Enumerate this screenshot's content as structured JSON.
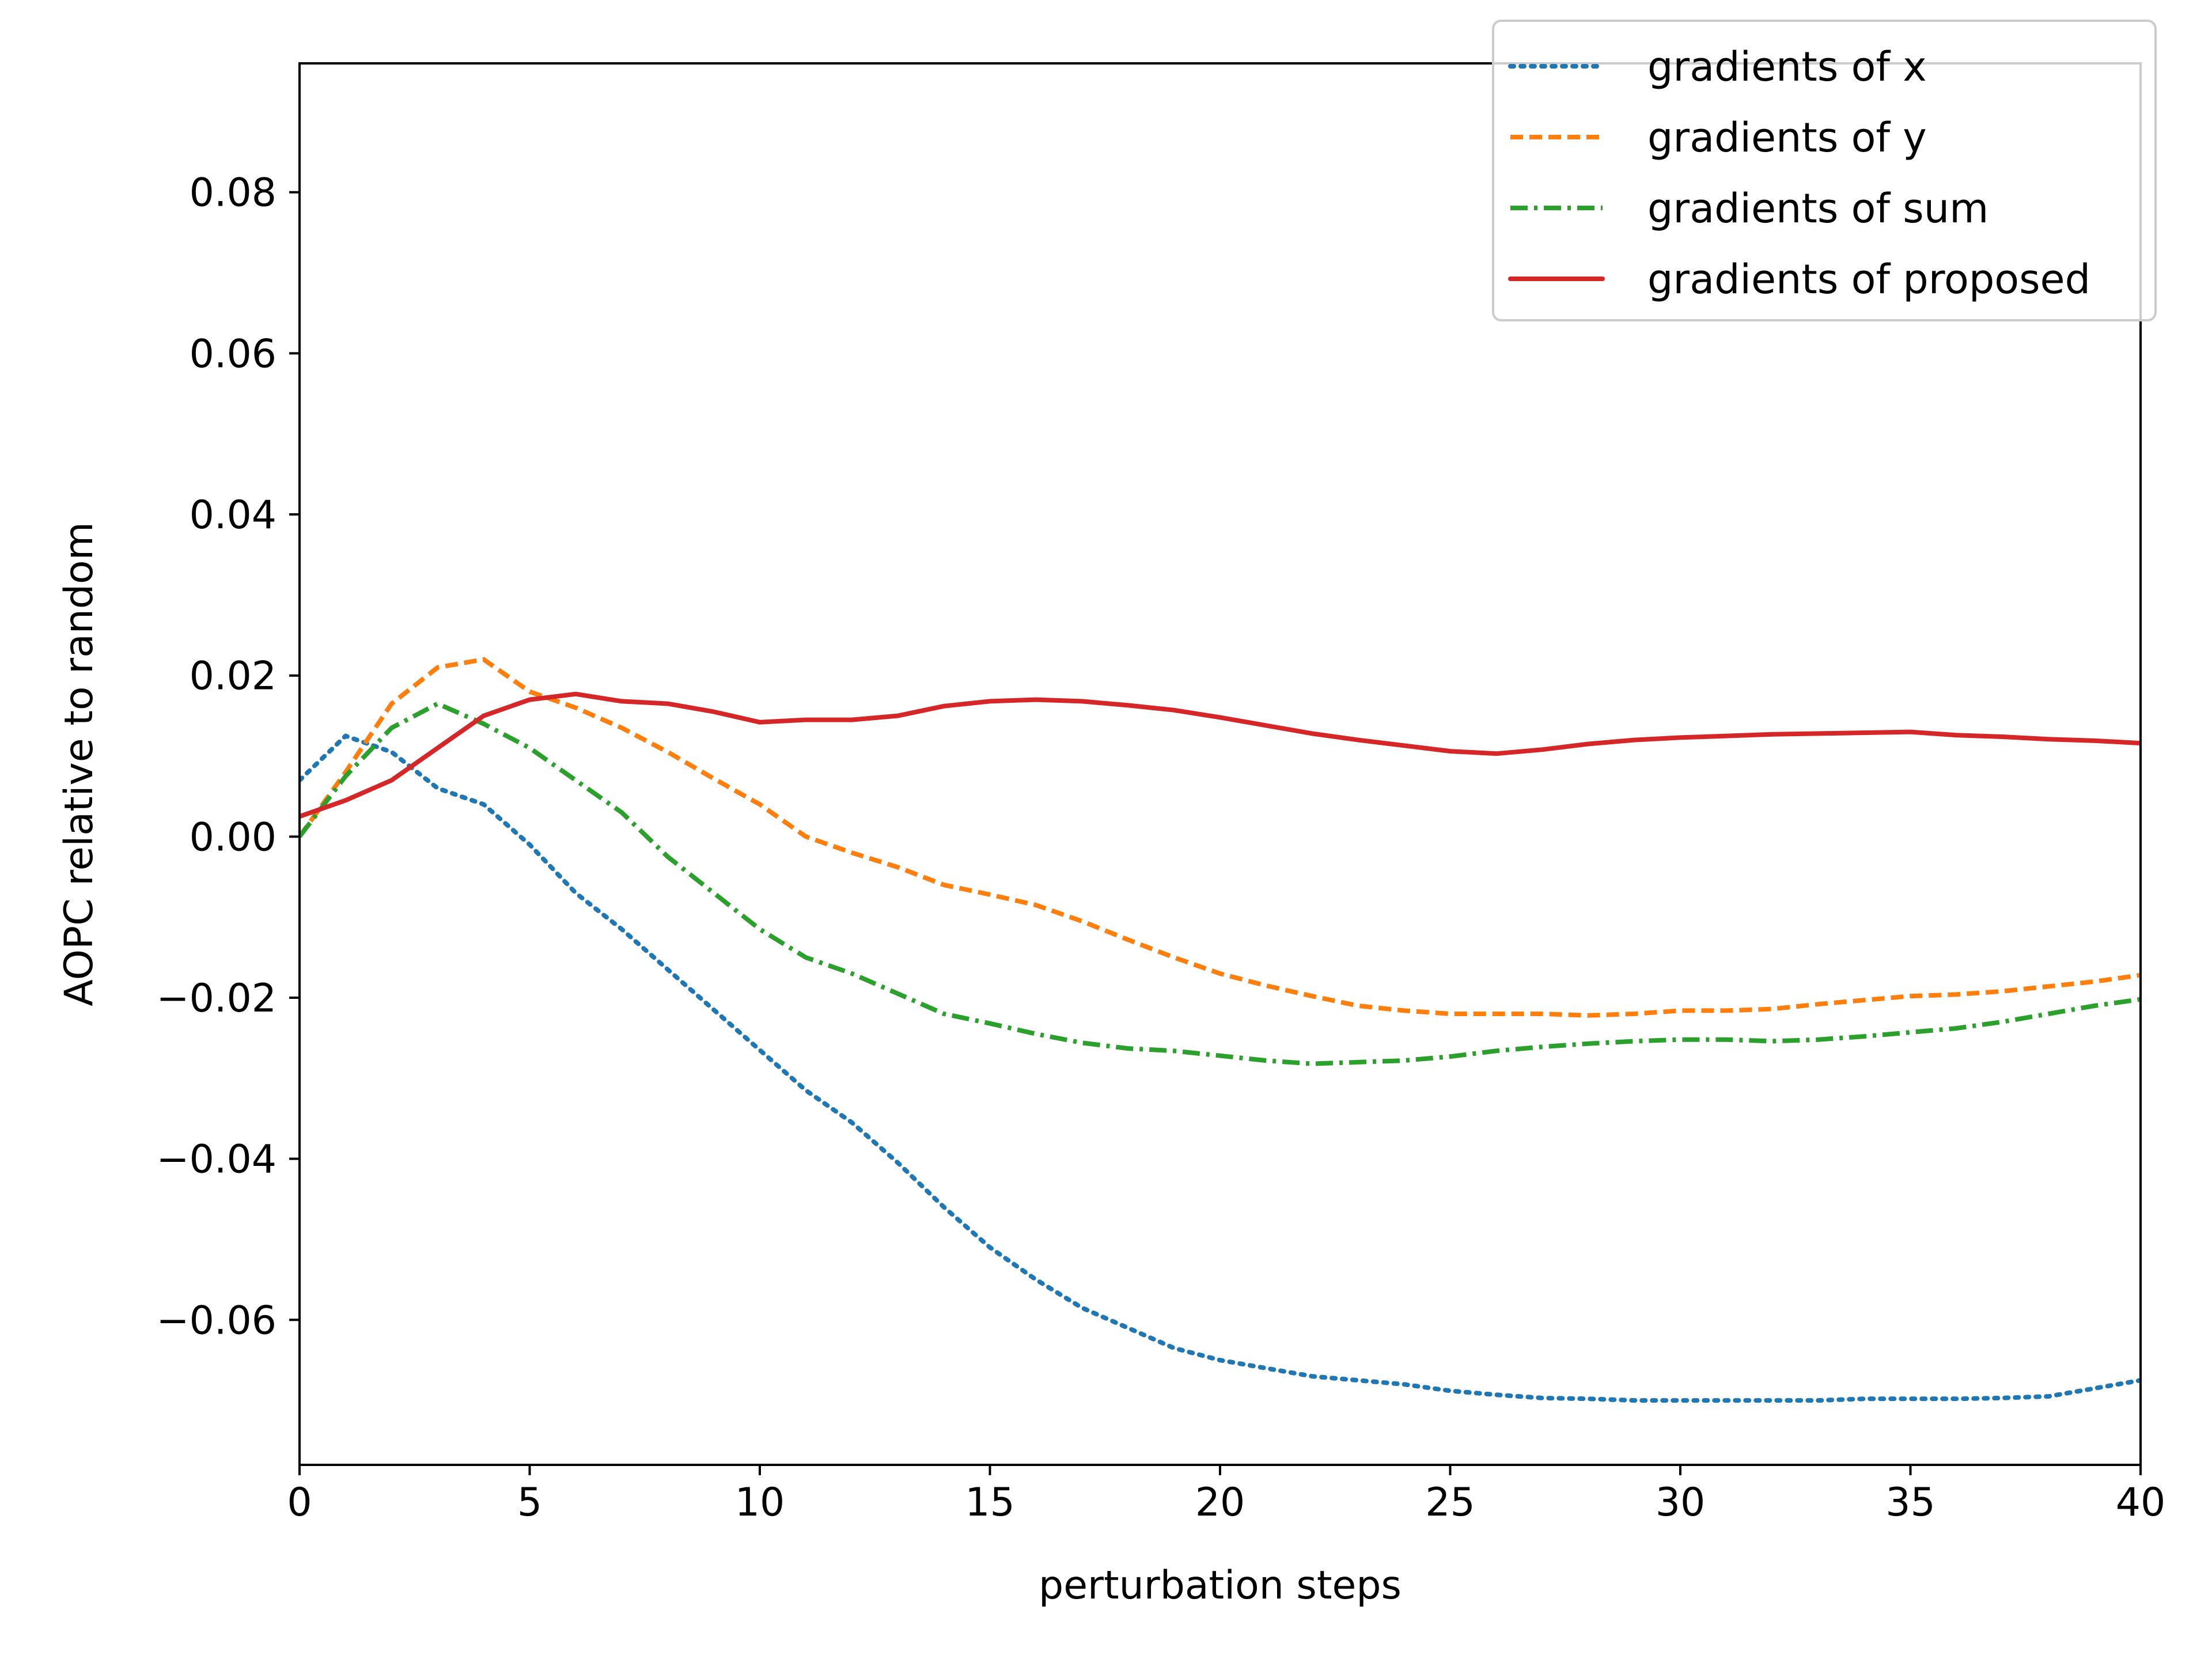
{
  "chart_data": {
    "type": "line",
    "title": "",
    "xlabel": "perturbation steps",
    "ylabel": "AOPC relative to random",
    "xlim": [
      0,
      40
    ],
    "ylim": [
      -0.078,
      0.096
    ],
    "x_ticks": [
      0,
      5,
      10,
      15,
      20,
      25,
      30,
      35,
      40
    ],
    "x_tick_labels": [
      "0",
      "5",
      "10",
      "15",
      "20",
      "25",
      "30",
      "35",
      "40"
    ],
    "y_ticks": [
      -0.06,
      -0.04,
      -0.02,
      0.0,
      0.02,
      0.04,
      0.06,
      0.08
    ],
    "y_tick_labels": [
      "−0.06",
      "−0.04",
      "−0.02",
      "0.00",
      "0.02",
      "0.04",
      "0.06",
      "0.08"
    ],
    "grid": false,
    "legend_position": "top-right",
    "x": [
      0,
      1,
      2,
      3,
      4,
      5,
      6,
      7,
      8,
      9,
      10,
      11,
      12,
      13,
      14,
      15,
      16,
      17,
      18,
      19,
      20,
      21,
      22,
      23,
      24,
      25,
      26,
      27,
      28,
      29,
      30,
      31,
      32,
      33,
      34,
      35,
      36,
      37,
      38,
      39,
      40
    ],
    "series": [
      {
        "name": "gradients of x",
        "color": "#1f77b4",
        "style": "dotted",
        "values": [
          0.007,
          0.0125,
          0.0105,
          0.006,
          0.004,
          -0.001,
          -0.007,
          -0.0115,
          -0.0165,
          -0.0215,
          -0.0265,
          -0.0315,
          -0.0355,
          -0.0405,
          -0.046,
          -0.051,
          -0.055,
          -0.0585,
          -0.061,
          -0.0635,
          -0.065,
          -0.066,
          -0.067,
          -0.0675,
          -0.068,
          -0.0688,
          -0.0693,
          -0.0697,
          -0.0698,
          -0.07,
          -0.07,
          -0.07,
          -0.07,
          -0.07,
          -0.0698,
          -0.0698,
          -0.0698,
          -0.0697,
          -0.0695,
          -0.0685,
          -0.0675
        ]
      },
      {
        "name": "gradients of y",
        "color": "#ff7f0e",
        "style": "dashed",
        "values": [
          0.0,
          0.008,
          0.0165,
          0.021,
          0.022,
          0.018,
          0.016,
          0.0135,
          0.0105,
          0.0072,
          0.004,
          0.0,
          -0.002,
          -0.0038,
          -0.006,
          -0.0072,
          -0.0085,
          -0.0105,
          -0.0128,
          -0.015,
          -0.017,
          -0.0185,
          -0.0198,
          -0.021,
          -0.0216,
          -0.022,
          -0.022,
          -0.022,
          -0.0222,
          -0.022,
          -0.0216,
          -0.0216,
          -0.0214,
          -0.0208,
          -0.0203,
          -0.0198,
          -0.0196,
          -0.0192,
          -0.0186,
          -0.018,
          -0.0172
        ]
      },
      {
        "name": "gradients of sum",
        "color": "#2ca02c",
        "style": "dashdot",
        "values": [
          0.0,
          0.0075,
          0.0135,
          0.0165,
          0.014,
          0.011,
          0.007,
          0.003,
          -0.0025,
          -0.007,
          -0.0115,
          -0.015,
          -0.017,
          -0.0195,
          -0.022,
          -0.0232,
          -0.0245,
          -0.0256,
          -0.0263,
          -0.0266,
          -0.0272,
          -0.0278,
          -0.0282,
          -0.028,
          -0.0278,
          -0.0273,
          -0.0266,
          -0.0261,
          -0.0257,
          -0.0254,
          -0.0252,
          -0.0252,
          -0.0254,
          -0.0252,
          -0.0248,
          -0.0243,
          -0.0238,
          -0.023,
          -0.022,
          -0.021,
          -0.0202
        ]
      },
      {
        "name": "gradients of proposed",
        "color": "#d62728",
        "style": "solid",
        "values": [
          0.0025,
          0.0045,
          0.007,
          0.011,
          0.015,
          0.017,
          0.0177,
          0.0168,
          0.0165,
          0.0155,
          0.0142,
          0.0145,
          0.0145,
          0.015,
          0.0162,
          0.0168,
          0.017,
          0.0168,
          0.0163,
          0.0157,
          0.0148,
          0.0138,
          0.0128,
          0.012,
          0.0113,
          0.0106,
          0.0103,
          0.0108,
          0.0115,
          0.012,
          0.0123,
          0.0125,
          0.0127,
          0.0128,
          0.0129,
          0.013,
          0.0126,
          0.0124,
          0.0121,
          0.0119,
          0.0116
        ]
      }
    ]
  }
}
